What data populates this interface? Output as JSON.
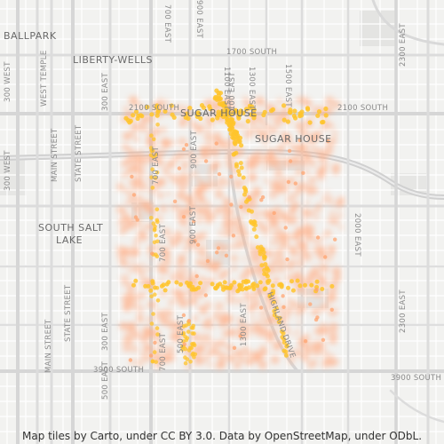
{
  "map": {
    "neighborhoods": [
      {
        "key": "ballpark",
        "label": "BALLPARK"
      },
      {
        "key": "liberty",
        "label": "LIBERTY-WELLS"
      },
      {
        "key": "sugar1",
        "label": "SUGAR HOUSE"
      },
      {
        "key": "sugar2",
        "label": "SUGAR HOUSE"
      },
      {
        "key": "ssl1",
        "label": "SOUTH SALT"
      },
      {
        "key": "ssl2",
        "label": "LAKE"
      }
    ],
    "streets": {
      "s700e_top": "700 EAST",
      "s900e_top": "900 EAST",
      "s1100e_top": "1100 EAST",
      "s1300e_top": "1300 EAST",
      "s1500e_top": "1500 EAST",
      "s1700s": "1700 SOUTH",
      "s2100s_left": "2100 SOUTH",
      "s2100s_right": "2100 SOUTH",
      "s300w_a": "300 WEST",
      "s300w_b": "300 WEST",
      "west_temple": "WEST TEMPLE",
      "main_a": "MAIN STREET",
      "main_b": "MAIN STREET",
      "state_a": "STATE STREET",
      "state_b": "STATE STREET",
      "s300e_a": "300 EAST",
      "s300e_b": "300 EAST",
      "s500e_a": "500 EAST",
      "s500e_b": "500 EAST",
      "s700e_mid": "700 EAST",
      "s700e_low": "700 EAST",
      "s700e_bot": "700 EAST",
      "s900e_mid": "900 EAST",
      "s900e_bot": "900 EAST",
      "s1100e_mid": "1100 EAST",
      "s1300e_bot": "1300 EAST",
      "highland": "HIGHLAND DRIVE",
      "s2000e": "2000 EAST",
      "s2300e_top": "2300 EAST",
      "s2300e_bot": "2300 EAST",
      "s3900s_left": "3900 SOUTH",
      "s3900s_right": "3900 SOUTH"
    },
    "attribution": "Map tiles by Carto, under CC BY 3.0. Data by OpenStreetMap, under ODbL."
  },
  "colors": {
    "background": "#f2f2f0",
    "minor_road": "#ffffff",
    "major_road": "#d7d7d7",
    "park": "#e3e3e3",
    "block": "#ebebe9",
    "dot_fill": "#ffb089",
    "dot_highlight": "#ffc42b",
    "label": "#777777"
  }
}
